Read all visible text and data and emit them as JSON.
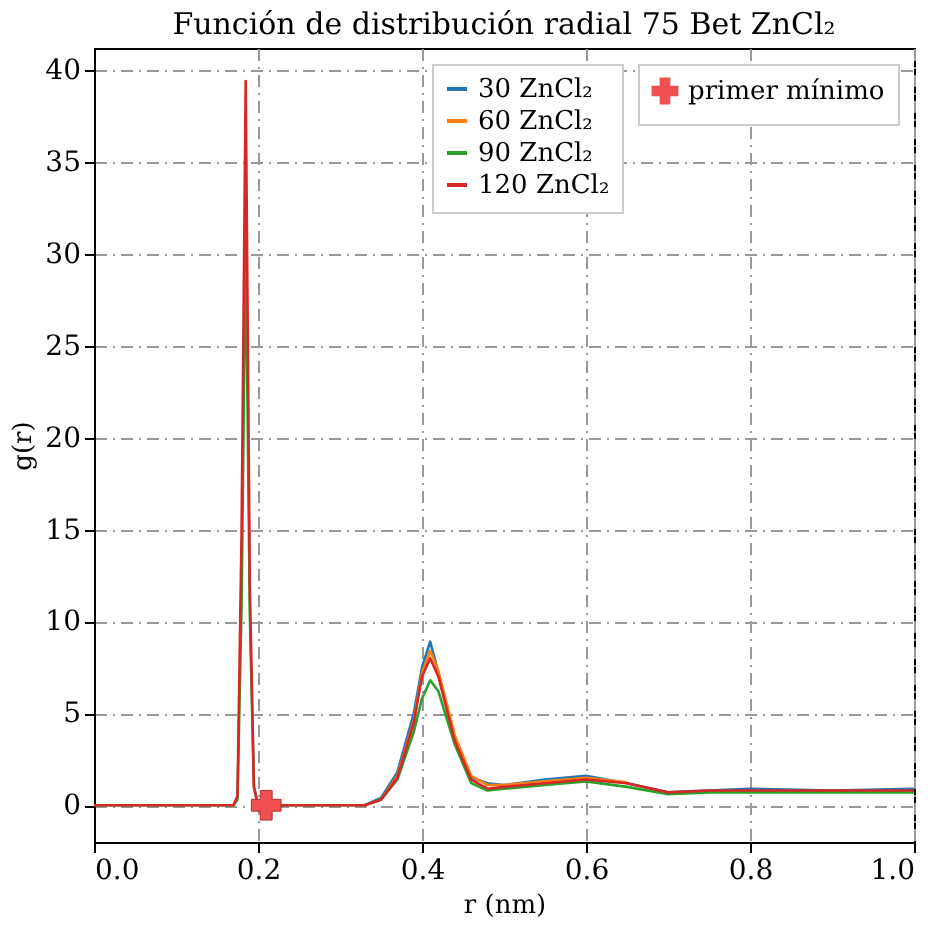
{
  "chart_data": {
    "type": "line",
    "title": "Función de distribución radial 75 Bet ZnCl₂",
    "xlabel": "r (nm)",
    "ylabel": "g(r)",
    "x": [
      0,
      0.17,
      0.175,
      0.18,
      0.185,
      0.19,
      0.195,
      0.2,
      0.21,
      0.25,
      0.3,
      0.33,
      0.35,
      0.37,
      0.39,
      0.4,
      0.41,
      0.42,
      0.44,
      0.46,
      0.48,
      0.5,
      0.55,
      0.6,
      0.65,
      0.7,
      0.75,
      0.8,
      0.9,
      1.0
    ],
    "series": [
      {
        "name": "30 ZnCl₂",
        "color": "#1f77b4",
        "values": [
          null,
          null,
          null,
          null,
          null,
          null,
          null,
          null,
          null,
          null,
          null,
          0,
          0.4,
          1.8,
          5,
          7.5,
          8.9,
          7.2,
          3.6,
          1.5,
          1.2,
          1.1,
          1.4,
          1.6,
          1.2,
          0.7,
          0.8,
          0.9,
          0.8,
          0.9
        ]
      },
      {
        "name": "60 ZnCl₂",
        "color": "#ff7f0e",
        "values": [
          null,
          null,
          null,
          null,
          null,
          null,
          null,
          null,
          null,
          null,
          null,
          null,
          0.3,
          1.6,
          4.6,
          7.2,
          8.4,
          7.3,
          3.8,
          1.6,
          1.1,
          1.1,
          1.3,
          1.5,
          1.25,
          null,
          null,
          null,
          null,
          null
        ]
      },
      {
        "name": "90 ZnCl₂",
        "color": "#2ca02c",
        "values": [
          0,
          0,
          0.3,
          11,
          31,
          10.5,
          1,
          0,
          0,
          0,
          0,
          0,
          0.3,
          1.4,
          4,
          5.8,
          6.8,
          6.2,
          3.3,
          1.2,
          0.8,
          0.9,
          1.1,
          1.3,
          1.0,
          0.6,
          0.7,
          0.7,
          0.7,
          0.7
        ]
      },
      {
        "name": "120 ZnCl₂",
        "color": "#d62728",
        "values": [
          0,
          0,
          0.5,
          15,
          39.4,
          12,
          1,
          0,
          0,
          0,
          0,
          0,
          0.3,
          1.5,
          4.5,
          7,
          8,
          7,
          3.5,
          1.4,
          0.9,
          1.0,
          1.2,
          1.4,
          1.2,
          0.7,
          0.8,
          0.8,
          0.8,
          0.8
        ]
      },
      {
        "name": "primer mínimo",
        "type": "scatter",
        "marker": "cross",
        "color": "#f05050",
        "x": [
          0.21
        ],
        "values": [
          0
        ]
      }
    ],
    "xlim": [
      0,
      1
    ],
    "ylim": [
      -2,
      41.2
    ],
    "xticks": [
      {
        "value": 0,
        "label": "0.0"
      },
      {
        "value": 0.2,
        "label": "0.2"
      },
      {
        "value": 0.4,
        "label": "0.4"
      },
      {
        "value": 0.6,
        "label": "0.6"
      },
      {
        "value": 0.8,
        "label": "0.8"
      },
      {
        "value": 1.0,
        "label": "1.0"
      }
    ],
    "yticks": [
      0,
      5,
      10,
      15,
      20,
      25,
      30,
      35,
      40
    ],
    "grid": true,
    "legend": "top right"
  }
}
